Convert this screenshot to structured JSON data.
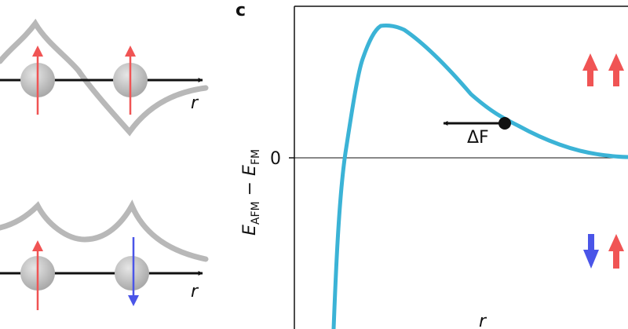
{
  "panel_c": {
    "letter": "c",
    "xlabel": "r",
    "zero_label": "0",
    "force_label": "ΔF",
    "ylabel": {
      "E": "E",
      "sub_afm": "AFM",
      "minus": " − ",
      "sub_fm": "FM"
    }
  },
  "left_panels": {
    "top": {
      "axis_label": "r",
      "spins": [
        "up",
        "up"
      ]
    },
    "bottom": {
      "axis_label": "r",
      "spins": [
        "up",
        "down"
      ]
    }
  },
  "colors": {
    "curve": "#3bb3d6",
    "spin_up": "#f05454",
    "spin_down": "#4a55e8",
    "gray": "#b8b8b8",
    "atom": "#c8c8c8",
    "axis": "#111111"
  },
  "chart_data": {
    "type": "line",
    "title": "",
    "xlabel": "r",
    "ylabel": "E_AFM − E_FM",
    "yticks": [
      "0"
    ],
    "grid": false,
    "series": [
      {
        "name": "",
        "description": "energy difference vs r"
      }
    ],
    "annotation": {
      "label": "ΔF",
      "direction": "left"
    },
    "legend": {
      "top_right": [
        "up",
        "up"
      ],
      "bottom_right": [
        "down",
        "up"
      ]
    }
  }
}
